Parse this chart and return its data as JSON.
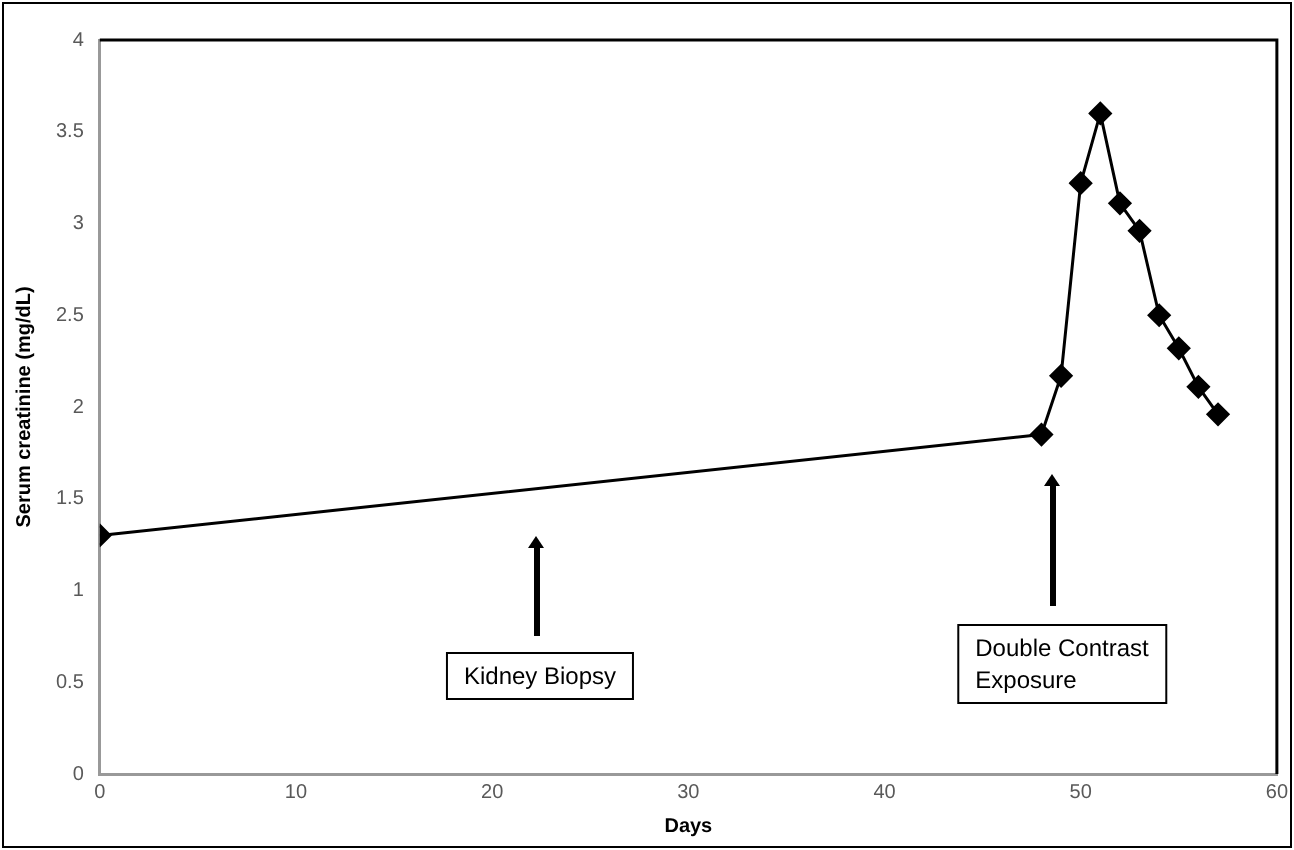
{
  "chart_data": {
    "type": "line",
    "xlabel": "Days",
    "ylabel": "Serum creatinine (mg/dL)",
    "x": [
      0,
      48,
      49,
      50,
      51,
      52,
      53,
      54,
      55,
      56,
      57
    ],
    "values": [
      1.3,
      1.85,
      2.17,
      3.22,
      3.6,
      3.11,
      2.96,
      2.5,
      2.32,
      2.11,
      1.96
    ],
    "color": "#000000",
    "marker": "diamond",
    "line_style": "solid",
    "grid": false,
    "legend": false,
    "xlim": [
      0,
      60
    ],
    "xticks": [
      0,
      10,
      20,
      30,
      40,
      50,
      60
    ],
    "ylim": [
      0,
      4
    ],
    "yticks": [
      0,
      0.5,
      1,
      1.5,
      2,
      2.5,
      3,
      3.5,
      4
    ],
    "annotations": [
      "Kidney Biopsy",
      "Double Contrast\nExposure"
    ]
  }
}
